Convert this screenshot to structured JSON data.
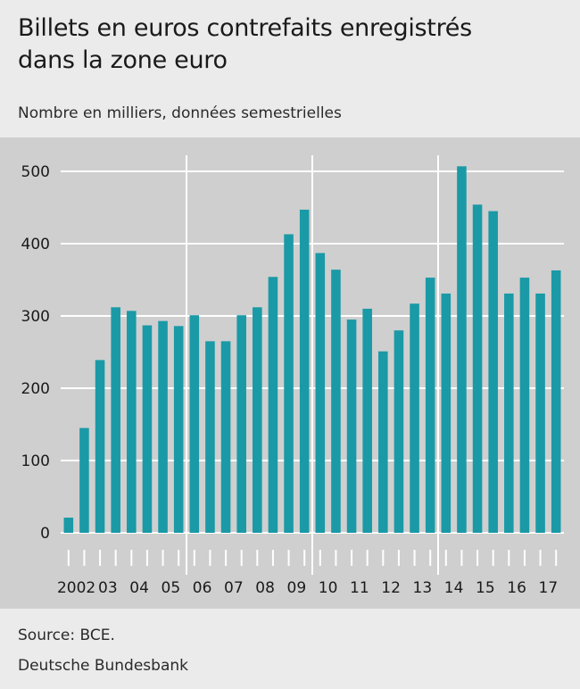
{
  "header": {
    "title_line1": "Billets en euros contrefaits enregistrés",
    "title_line2": "dans la zone euro",
    "subtitle": "Nombre en milliers, données semestrielles"
  },
  "footer": {
    "source": "Source: BCE.",
    "publisher": "Deutsche Bundesbank"
  },
  "colors": {
    "bar": "#1a9aa6",
    "plot_background": "#cfcfcf",
    "page_background": "#ebebeb",
    "grid": "#ffffff"
  },
  "chart_data": {
    "type": "bar",
    "title": "Billets en euros contrefaits enregistrés dans la zone euro",
    "subtitle": "Nombre en milliers, données semestrielles",
    "xlabel": "",
    "ylabel": "",
    "ylim": [
      0,
      500
    ],
    "yticks": [
      0,
      100,
      200,
      300,
      400,
      500
    ],
    "x_year_labels": [
      "2002",
      "03",
      "04",
      "05",
      "06",
      "07",
      "08",
      "09",
      "10",
      "11",
      "12",
      "13",
      "14",
      "15",
      "16",
      "17"
    ],
    "categories": [
      "2002 H1",
      "2002 H2",
      "2003 H1",
      "2003 H2",
      "2004 H1",
      "2004 H2",
      "2005 H1",
      "2005 H2",
      "2006 H1",
      "2006 H2",
      "2007 H1",
      "2007 H2",
      "2008 H1",
      "2008 H2",
      "2009 H1",
      "2009 H2",
      "2010 H1",
      "2010 H2",
      "2011 H1",
      "2011 H2",
      "2012 H1",
      "2012 H2",
      "2013 H1",
      "2013 H2",
      "2014 H1",
      "2014 H2",
      "2015 H1",
      "2015 H2",
      "2016 H1",
      "2016 H2",
      "2017 H1",
      "2017 H2"
    ],
    "values": [
      21,
      145,
      239,
      312,
      307,
      287,
      293,
      286,
      301,
      265,
      265,
      301,
      312,
      354,
      413,
      447,
      387,
      364,
      295,
      310,
      251,
      280,
      317,
      353,
      331,
      507,
      454,
      445,
      331,
      353,
      331,
      363
    ],
    "grid": true,
    "legend": "none"
  }
}
